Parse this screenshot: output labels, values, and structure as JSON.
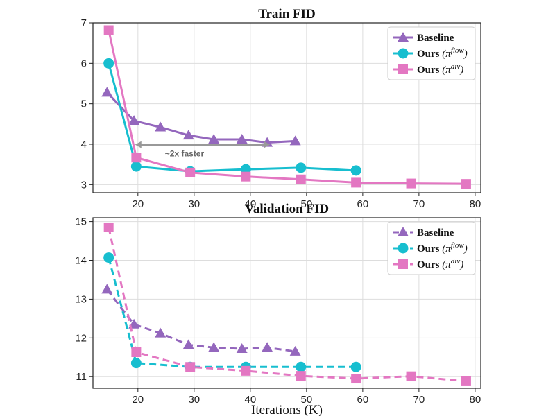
{
  "chart_data": [
    {
      "type": "line",
      "title": "Train FID",
      "xlabel": "",
      "ylabel": "",
      "xlim": [
        12,
        81
      ],
      "ylim": [
        2.8,
        7.0
      ],
      "xticks": [
        20,
        30,
        40,
        50,
        60,
        70,
        80
      ],
      "yticks": [
        3,
        4,
        5,
        6,
        7
      ],
      "grid": true,
      "legend": "top-right",
      "line_style": "solid",
      "series": [
        {
          "name": "Baseline",
          "marker": "triangle",
          "color": "#9467bd",
          "x": [
            14.5,
            19.3,
            24,
            29,
            33.5,
            38.5,
            43,
            48
          ],
          "y": [
            5.28,
            4.58,
            4.42,
            4.22,
            4.12,
            4.12,
            4.04,
            4.08
          ]
        },
        {
          "name": "Ours",
          "sup": "flow",
          "marker": "circle",
          "color": "#17becf",
          "x": [
            14.8,
            19.7,
            29.3,
            39.2,
            49,
            58.8
          ],
          "y": [
            6.0,
            3.45,
            3.33,
            3.38,
            3.42,
            3.35
          ]
        },
        {
          "name": "Ours",
          "sup": "div",
          "marker": "square",
          "color": "#e377c2",
          "x": [
            14.8,
            19.7,
            29.3,
            39.2,
            49,
            58.8,
            68.6,
            78.4
          ],
          "y": [
            6.82,
            3.67,
            3.3,
            3.2,
            3.13,
            3.05,
            3.03,
            3.02
          ]
        }
      ],
      "annotation": {
        "text": "~2x faster",
        "x_from": 19.5,
        "x_to": 43.5,
        "y": 3.99,
        "color": "#999999"
      }
    },
    {
      "type": "line",
      "title": "Validation FID",
      "xlabel": "Iterations (K)",
      "ylabel": "",
      "xlim": [
        12,
        81
      ],
      "ylim": [
        10.7,
        15.1
      ],
      "xticks": [
        20,
        30,
        40,
        50,
        60,
        70,
        80
      ],
      "yticks": [
        11,
        12,
        13,
        14,
        15
      ],
      "grid": true,
      "legend": "top-right",
      "line_style": "dashed",
      "series": [
        {
          "name": "Baseline",
          "marker": "triangle",
          "color": "#9467bd",
          "x": [
            14.5,
            19.3,
            24,
            29,
            33.5,
            38.5,
            43,
            48
          ],
          "y": [
            13.25,
            12.35,
            12.12,
            11.82,
            11.75,
            11.72,
            11.75,
            11.65
          ]
        },
        {
          "name": "Ours",
          "sup": "flow",
          "marker": "circle",
          "color": "#17becf",
          "x": [
            14.8,
            19.7,
            29.3,
            39.2,
            49,
            58.8
          ],
          "y": [
            14.07,
            11.35,
            11.25,
            11.25,
            11.25,
            11.25
          ]
        },
        {
          "name": "Ours",
          "sup": "div",
          "marker": "square",
          "color": "#e377c2",
          "x": [
            14.8,
            19.7,
            29.3,
            39.2,
            49,
            58.8,
            68.6,
            78.4
          ],
          "y": [
            14.85,
            11.63,
            11.25,
            11.15,
            11.02,
            10.95,
            11.01,
            10.88
          ]
        }
      ]
    }
  ]
}
